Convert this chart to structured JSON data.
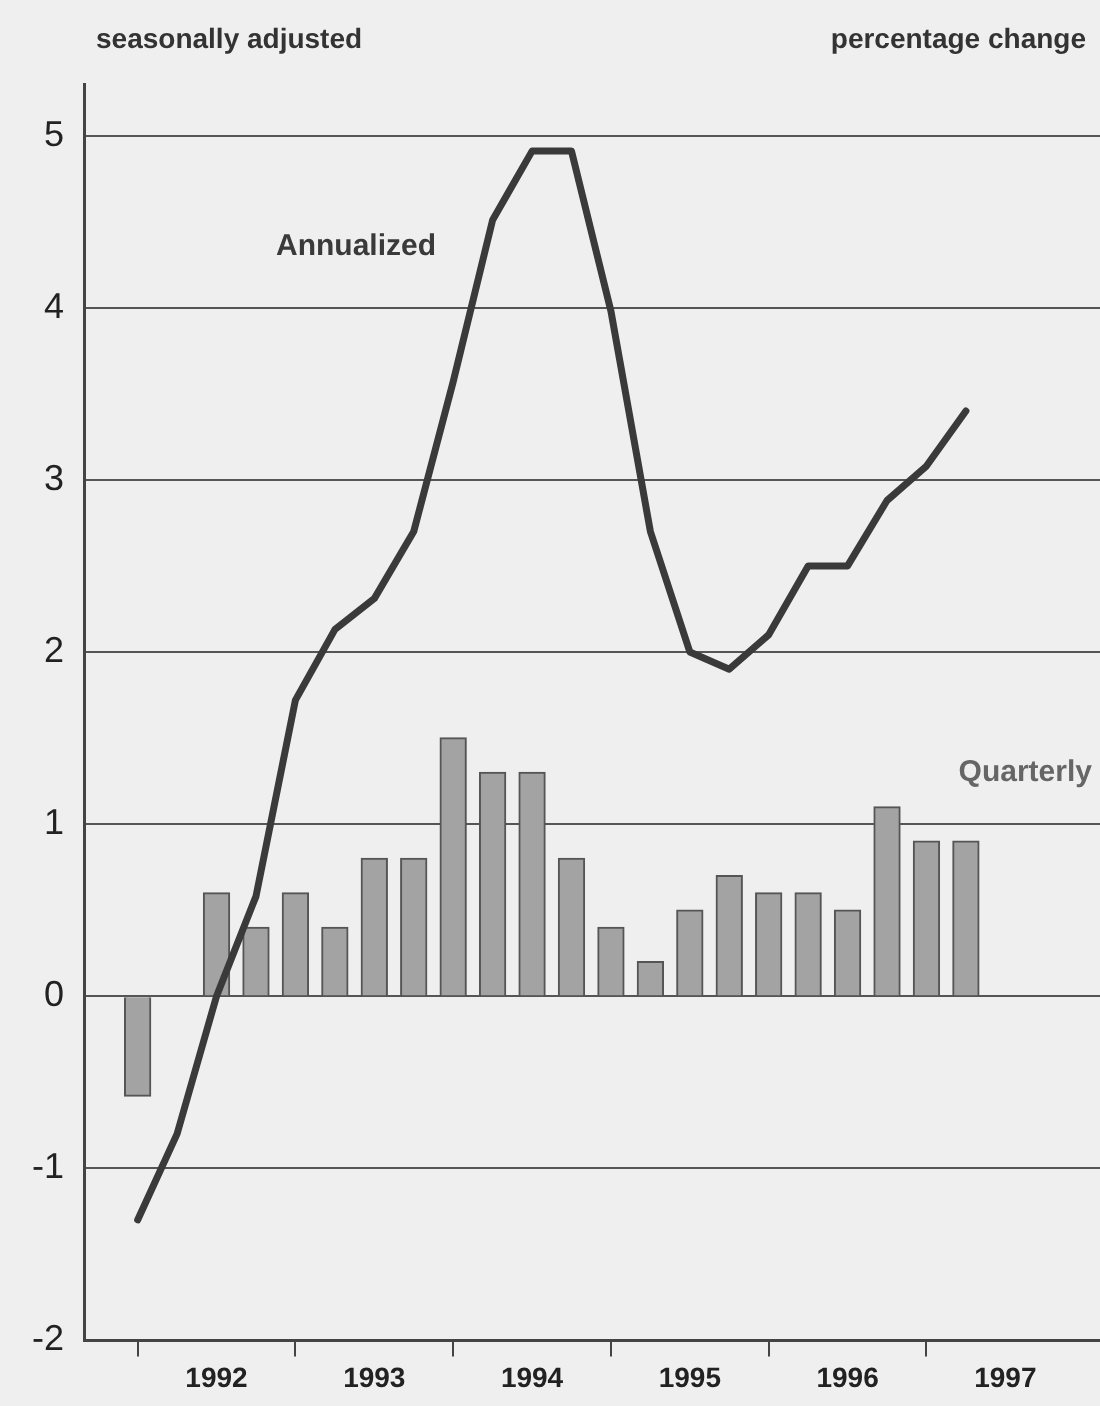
{
  "chart_data": {
    "type": "bar",
    "subtitle": "seasonally adjusted",
    "ylabel": "percentage change",
    "x": [
      1992,
      1992.25,
      1992.5,
      1992.75,
      1993,
      1993.25,
      1993.5,
      1993.75,
      1994,
      1994.25,
      1994.5,
      1994.75,
      1995,
      1995.25,
      1995.5,
      1995.75,
      1996,
      1996.25,
      1996.5,
      1996.75,
      1997,
      1997.25
    ],
    "series": [
      {
        "name": "Quarterly",
        "color": "#a3a3a3",
        "values": [
          -0.58,
          null,
          0.6,
          0.4,
          0.6,
          0.4,
          0.8,
          0.8,
          1.5,
          1.3,
          1.3,
          0.8,
          0.4,
          0.2,
          0.5,
          0.7,
          0.6,
          0.6,
          0.5,
          1.1,
          0.9,
          0.9
        ]
      },
      {
        "name": "Annualized",
        "type": "line",
        "color": "#3a3a3a",
        "values": [
          -1.3,
          -0.8,
          0.0,
          0.58,
          1.72,
          2.13,
          2.31,
          2.7,
          3.57,
          4.51,
          4.91,
          4.91,
          3.98,
          2.7,
          2.0,
          1.9,
          2.1,
          2.5,
          2.5,
          2.88,
          3.08,
          3.4
        ]
      }
    ],
    "xlim": [
      1991.66,
      1998.1
    ],
    "xticks": [
      {
        "value": 1992,
        "label": null
      },
      {
        "value": 1992.5,
        "label": "1992"
      },
      {
        "value": 1993,
        "label": null
      },
      {
        "value": 1993.5,
        "label": "1993"
      },
      {
        "value": 1994,
        "label": null
      },
      {
        "value": 1994.5,
        "label": "1994"
      },
      {
        "value": 1995,
        "label": null
      },
      {
        "value": 1995.5,
        "label": "1995"
      },
      {
        "value": 1996,
        "label": null
      },
      {
        "value": 1996.5,
        "label": "1996"
      },
      {
        "value": 1997,
        "label": null
      },
      {
        "value": 1997.5,
        "label": "1997"
      }
    ],
    "ylim": [
      -2,
      5.3
    ],
    "yticks": [
      -2,
      -1,
      0,
      1,
      2,
      3,
      4,
      5
    ],
    "grid": "y",
    "legend": false,
    "marker": "none",
    "line_style": "solid"
  }
}
